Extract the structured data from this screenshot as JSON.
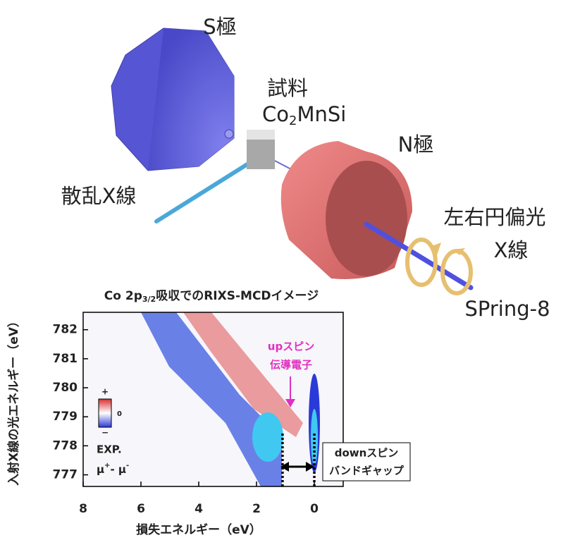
{
  "diagram": {
    "s_pole": "S極",
    "sample": "試料",
    "compound": {
      "a": "Co",
      "sub": "2",
      "b": "MnSi"
    },
    "n_pole": "N極",
    "scattered": "散乱X線",
    "polarized": "左右円偏光",
    "xray": "X線",
    "source": "SPring-8"
  },
  "chart_data": {
    "type": "heatmap",
    "title": {
      "a": "Co 2p",
      "sub": "3/2",
      "b": "吸収でのRIXS-MCDイメージ"
    },
    "xlabel": "損失エネルギー（eV）",
    "ylabel": "入射X線の光エネルギー（eV）",
    "xlim": [
      8,
      -1
    ],
    "xticks": [
      8,
      6,
      4,
      2,
      0
    ],
    "ylim": [
      776.6,
      782.6
    ],
    "yticks": [
      777,
      778,
      779,
      780,
      781,
      782
    ],
    "vlines": [
      1.1,
      0
    ],
    "colorbar": {
      "plus": "+",
      "zero": "0",
      "minus": "−"
    },
    "legend": {
      "exp": "EXP.",
      "mu": "μ",
      "plus": "+",
      "sep": "- μ",
      "minus": "-"
    },
    "annotations": {
      "up1": "upスピン",
      "up2": "伝導電子",
      "down1": "downスピン",
      "down2": "バンドギャップ"
    }
  }
}
